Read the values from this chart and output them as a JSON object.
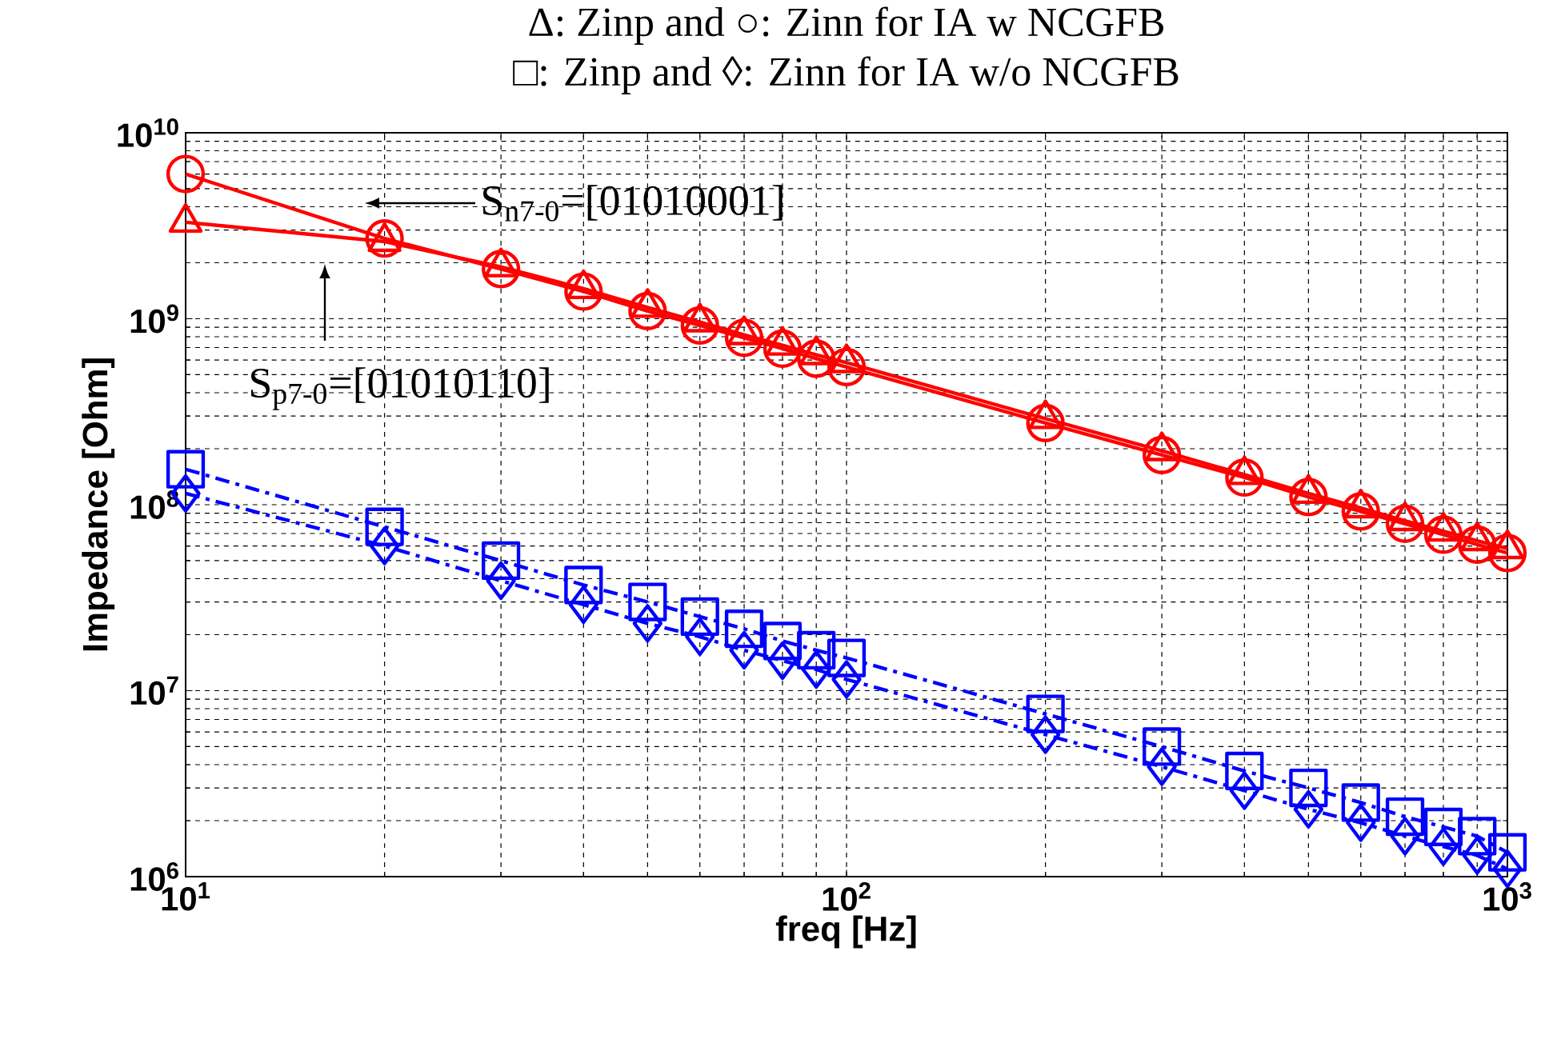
{
  "chart_data": {
    "type": "line",
    "title": "Δ: Zinp and ○: Zinn for IA w NCGFB",
    "subtitle": "□: Zinp and ◊: Zinn for IA w/o NCGFB",
    "xlabel": "freq [Hz]",
    "ylabel": "Impedance [Ohm]",
    "x": [
      10,
      20,
      30,
      40,
      50,
      60,
      70,
      80,
      90,
      100,
      200,
      300,
      400,
      500,
      600,
      700,
      800,
      900,
      1000
    ],
    "series": [
      {
        "color": "#ff0000",
        "marker": "triangle",
        "line_style": "solid",
        "values": [
          3300000000.0,
          2600000000.0,
          1900000000.0,
          1450000000.0,
          1150000000.0,
          960000000.0,
          820000000.0,
          720000000.0,
          640000000.0,
          580000000.0,
          290000000.0,
          195000000.0,
          145000000.0,
          115000000.0,
          96000000.0,
          82000000.0,
          72000000.0,
          64000000.0,
          58000000.0
        ]
      },
      {
        "color": "#ff0000",
        "marker": "circle",
        "line_style": "solid",
        "values": [
          6000000000.0,
          2700000000.0,
          1850000000.0,
          1400000000.0,
          1100000000.0,
          920000000.0,
          790000000.0,
          690000000.0,
          610000000.0,
          550000000.0,
          275000000.0,
          185000000.0,
          140000000.0,
          110000000.0,
          92000000.0,
          79000000.0,
          69000000.0,
          61000000.0,
          55000000.0
        ]
      },
      {
        "color": "#0000ff",
        "marker": "square",
        "line_style": "dashdot",
        "values": [
          155000000.0,
          76000000.0,
          50000000.0,
          37000000.0,
          30000000.0,
          25000000.0,
          21500000.0,
          18500000.0,
          16500000.0,
          15000000.0,
          7500000.0,
          5000000.0,
          3700000.0,
          3000000.0,
          2500000.0,
          2100000.0,
          1850000.0,
          1650000.0,
          1350000.0
        ]
      },
      {
        "color": "#0000ff",
        "marker": "diamond",
        "line_style": "dashdot",
        "values": [
          115000000.0,
          60000000.0,
          39000000.0,
          29000000.0,
          23000000.0,
          19500000.0,
          16500000.0,
          14500000.0,
          13000000.0,
          11500000.0,
          5800000.0,
          3900000.0,
          2900000.0,
          2300000.0,
          1950000.0,
          1650000.0,
          1450000.0,
          1300000.0,
          1100000.0
        ]
      }
    ],
    "log": "xy",
    "xlim": [
      10,
      1000
    ],
    "xticks": [
      {
        "value": 10,
        "label": "10$^{1}$"
      },
      {
        "value": 100,
        "label": "10$^{2}$"
      },
      {
        "value": 1000,
        "label": "10$^{3}$"
      }
    ],
    "ylim": [
      1000000.0,
      10000000000.0
    ],
    "yticks": [
      {
        "value": 1000000.0,
        "label": "10$^{6}$"
      },
      {
        "value": 10000000.0,
        "label": "10$^{7}$"
      },
      {
        "value": 100000000.0,
        "label": "10$^{8}$"
      },
      {
        "value": 1000000000.0,
        "label": "10$^{9}$"
      },
      {
        "value": 10000000000.0,
        "label": "10$^{10}$"
      }
    ],
    "grid": true,
    "annotations": [
      "S$_{n7-0}$=[01010001]",
      "S$_{p7-0}$=[01010110]"
    ]
  }
}
